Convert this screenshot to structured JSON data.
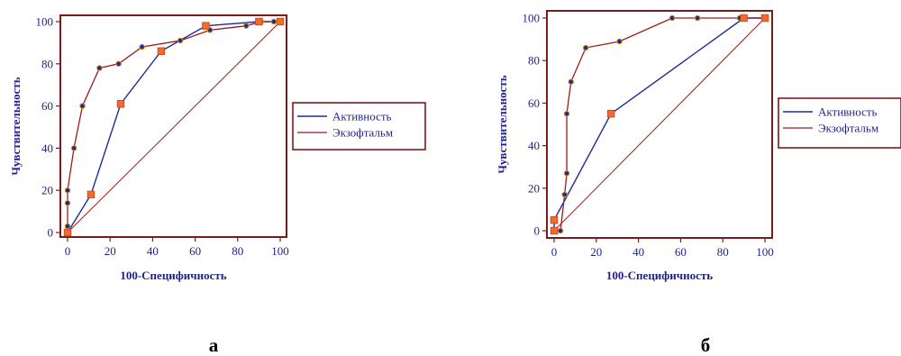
{
  "colors": {
    "frame": "#7a1a1a",
    "activity_line": "#1f2a9a",
    "exophthalmos_line": "#9b1b1b",
    "diagonal": "#9b1b1b",
    "point_fill": "#1f2a9a",
    "point_edge": "#d4a017",
    "square_fill": "#f26a2e",
    "text": "#1f1f8f"
  },
  "chart_data": [
    {
      "type": "line",
      "panel_label": "а",
      "xlabel": "100-Специфичность",
      "ylabel": "Чувствительность",
      "xlim": [
        0,
        100
      ],
      "ylim": [
        0,
        100
      ],
      "x_ticks": [
        0,
        20,
        40,
        60,
        80,
        100
      ],
      "y_ticks": [
        0,
        20,
        40,
        60,
        80,
        100
      ],
      "grid": false,
      "legend_position": "right",
      "legend": [
        "Активность",
        "Экзофтальм"
      ],
      "series": [
        {
          "name": "Активность",
          "line_style": "solid",
          "points": [
            [
              0,
              0
            ],
            [
              11,
              18
            ],
            [
              25,
              61
            ],
            [
              44,
              86
            ],
            [
              65,
              98
            ],
            [
              90,
              100
            ],
            [
              100,
              100
            ]
          ],
          "markers": "square"
        },
        {
          "name": "Экзофтальм",
          "line_style": "solid-thin",
          "points": [
            [
              0,
              0
            ],
            [
              0,
              3
            ],
            [
              0,
              14
            ],
            [
              0,
              20
            ],
            [
              3,
              40
            ],
            [
              7,
              60
            ],
            [
              15,
              78
            ],
            [
              24,
              80
            ],
            [
              35,
              88
            ],
            [
              53,
              91
            ],
            [
              67,
              96
            ],
            [
              84,
              98
            ],
            [
              91,
              100
            ],
            [
              97,
              100
            ],
            [
              100,
              100
            ]
          ],
          "markers": "circle"
        }
      ],
      "reference_line": [
        [
          0,
          0
        ],
        [
          100,
          100
        ]
      ]
    },
    {
      "type": "line",
      "panel_label": "б",
      "xlabel": "100-Специфичность",
      "ylabel": "Чувствительность",
      "xlim": [
        0,
        100
      ],
      "ylim": [
        0,
        100
      ],
      "x_ticks": [
        0,
        20,
        40,
        60,
        80,
        100
      ],
      "y_ticks": [
        0,
        20,
        40,
        60,
        80,
        100
      ],
      "grid": false,
      "legend_position": "right",
      "legend": [
        "Активность",
        "Экзофтальм"
      ],
      "series": [
        {
          "name": "Активность",
          "line_style": "solid",
          "points": [
            [
              0,
              0
            ],
            [
              0,
              5
            ],
            [
              27,
              55
            ],
            [
              90,
              100
            ],
            [
              100,
              100
            ]
          ],
          "markers": "square"
        },
        {
          "name": "Экзофтальм",
          "line_style": "solid-thin",
          "points": [
            [
              0,
              0
            ],
            [
              3,
              0
            ],
            [
              5,
              17
            ],
            [
              6,
              27
            ],
            [
              6,
              55
            ],
            [
              8,
              70
            ],
            [
              15,
              86
            ],
            [
              31,
              89
            ],
            [
              56,
              100
            ],
            [
              68,
              100
            ],
            [
              88,
              100
            ],
            [
              100,
              100
            ]
          ],
          "markers": "circle"
        }
      ],
      "reference_line": [
        [
          0,
          0
        ],
        [
          100,
          100
        ]
      ]
    }
  ]
}
